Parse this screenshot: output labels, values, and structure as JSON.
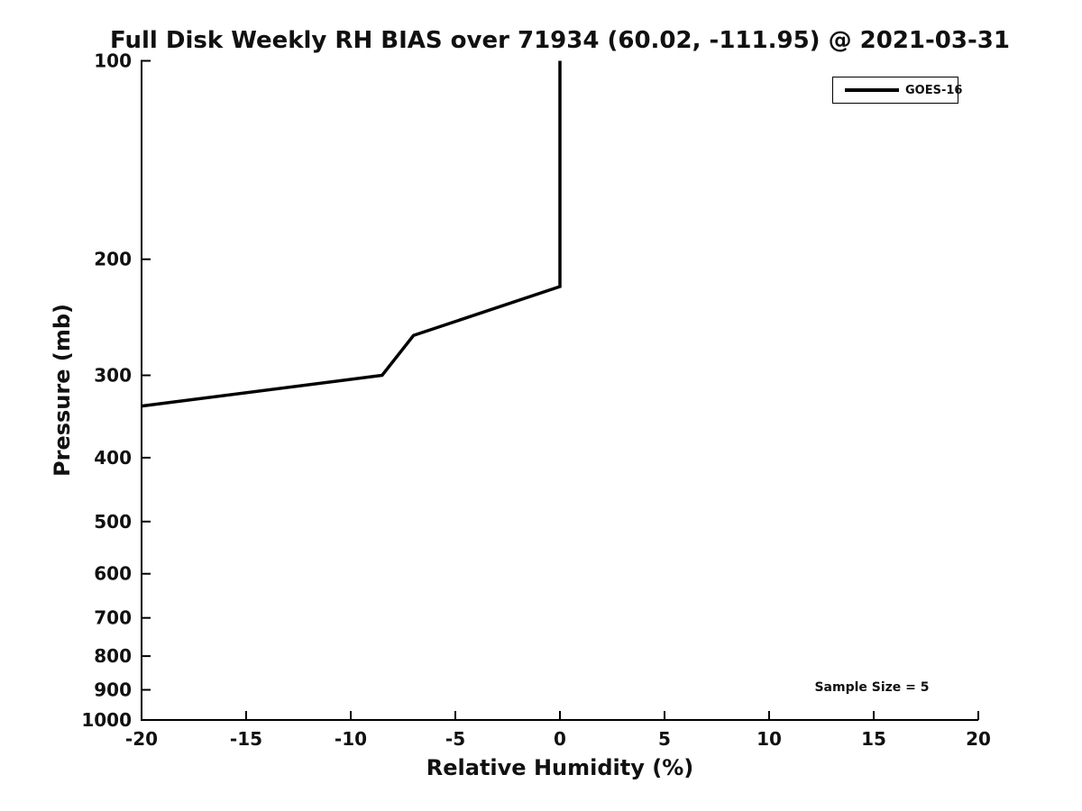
{
  "chart_data": {
    "type": "line",
    "title": "Full Disk Weekly RH BIAS over 71934 (60.02, -111.95) @ 2021-03-31",
    "xlabel": "Relative Humidity (%)",
    "ylabel": "Pressure (mb)",
    "xlim": [
      -20,
      20
    ],
    "ylim": [
      100,
      1000
    ],
    "y_scale": "log",
    "y_inverted": true,
    "grid": false,
    "x_ticks": [
      -20,
      -15,
      -10,
      -5,
      0,
      5,
      10,
      15,
      20
    ],
    "y_ticks": [
      100,
      200,
      300,
      400,
      500,
      600,
      700,
      800,
      900,
      1000
    ],
    "legend_position": "top-right",
    "series": [
      {
        "name": "GOES-16",
        "color": "#000000",
        "points_rh_pressure": [
          [
            0,
            100
          ],
          [
            0,
            220
          ],
          [
            -7,
            261
          ],
          [
            -8.5,
            300
          ],
          [
            -20,
            334
          ]
        ]
      }
    ],
    "annotations": [
      {
        "text": "Sample Size = 5",
        "position": "bottom-right"
      }
    ],
    "colors": {
      "line": "#000000",
      "axis": "#000000",
      "text": "#111111",
      "background": "#ffffff"
    }
  }
}
